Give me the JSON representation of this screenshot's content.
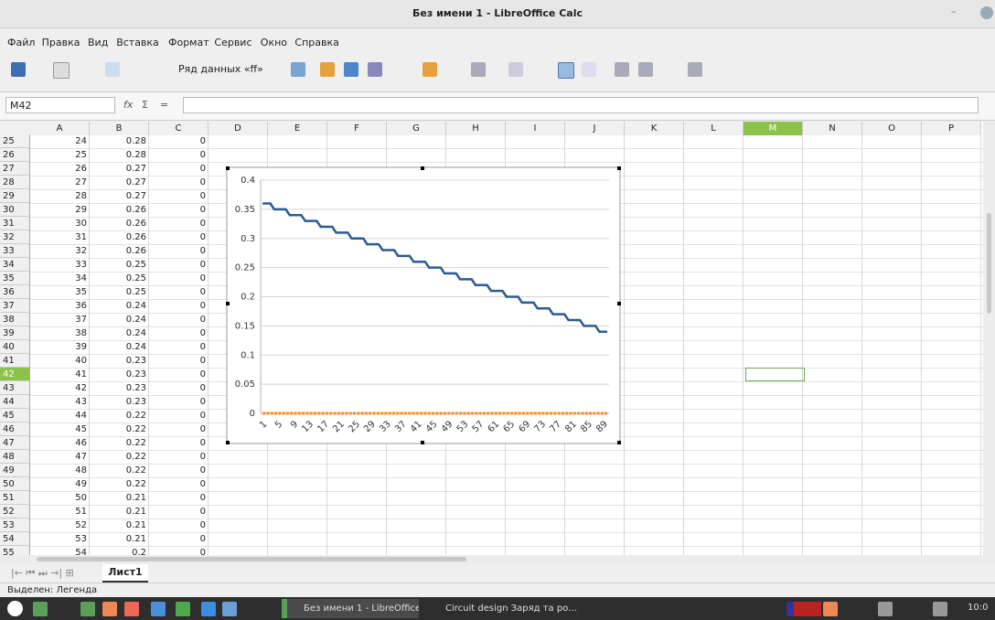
{
  "window_title": "Без имени 1 - LibreOffice Calc",
  "menu": [
    "Файл",
    "Правка",
    "Вид",
    "Вставка",
    "Формат",
    "Сервис",
    "Окно",
    "Справка"
  ],
  "toolbar": {
    "series_selector": "Ряд данных «ff»"
  },
  "name_box": "M42",
  "formula_symbols": [
    "fx",
    "Σ",
    "="
  ],
  "columns": [
    "A",
    "B",
    "C",
    "D",
    "E",
    "F",
    "G",
    "H",
    "I",
    "J",
    "K",
    "L",
    "M",
    "N",
    "O",
    "P"
  ],
  "rows": [
    [
      25,
      24,
      0.28,
      0
    ],
    [
      26,
      25,
      0.28,
      0
    ],
    [
      27,
      26,
      0.27,
      0
    ],
    [
      28,
      27,
      0.27,
      0
    ],
    [
      29,
      28,
      0.27,
      0
    ],
    [
      30,
      29,
      0.26,
      0
    ],
    [
      31,
      30,
      0.26,
      0
    ],
    [
      32,
      31,
      0.26,
      0
    ],
    [
      33,
      32,
      0.26,
      0
    ],
    [
      34,
      33,
      0.25,
      0
    ],
    [
      35,
      34,
      0.25,
      0
    ],
    [
      36,
      35,
      0.25,
      0
    ],
    [
      37,
      36,
      0.24,
      0
    ],
    [
      38,
      37,
      0.24,
      0
    ],
    [
      39,
      38,
      0.24,
      0
    ],
    [
      40,
      39,
      0.24,
      0
    ],
    [
      41,
      40,
      0.23,
      0
    ],
    [
      42,
      41,
      0.23,
      0
    ],
    [
      43,
      42,
      0.23,
      0
    ],
    [
      44,
      43,
      0.23,
      0
    ],
    [
      45,
      44,
      0.22,
      0
    ],
    [
      46,
      45,
      0.22,
      0
    ],
    [
      47,
      46,
      0.22,
      0
    ],
    [
      48,
      47,
      0.22,
      0
    ],
    [
      49,
      48,
      0.22,
      0
    ],
    [
      50,
      49,
      0.22,
      0
    ],
    [
      51,
      50,
      0.21,
      0
    ],
    [
      52,
      51,
      0.21,
      0
    ],
    [
      53,
      52,
      0.21,
      0
    ],
    [
      54,
      53,
      0.21,
      0
    ],
    [
      55,
      54,
      0.2,
      0
    ]
  ],
  "sheet_tab": "Лист1",
  "status": "Выделен: Легенда",
  "taskbar": {
    "items": [
      "Без имени 1 - LibreOffice ...",
      "Circuit design Заряд та ро..."
    ],
    "clock": "10:0"
  },
  "chart_data": {
    "type": "line",
    "categories": [
      1,
      null,
      null,
      null,
      5,
      null,
      null,
      null,
      9,
      null,
      null,
      null,
      13,
      null,
      null,
      null,
      17,
      null,
      null,
      null,
      21,
      null,
      null,
      null,
      25,
      null,
      null,
      null,
      29,
      null,
      null,
      null,
      33,
      null,
      null,
      null,
      37,
      null,
      null,
      null,
      41,
      null,
      null,
      null,
      45,
      null,
      null,
      null,
      49,
      null,
      null,
      null,
      53,
      null,
      null,
      null,
      57,
      null,
      null,
      null,
      61,
      null,
      null,
      null,
      65,
      null,
      null,
      null,
      69,
      null,
      null,
      null,
      73,
      null,
      null,
      null,
      77,
      null,
      null,
      null,
      81,
      null,
      null,
      null,
      85,
      null,
      null,
      null,
      89,
      null
    ],
    "series": [
      {
        "color": "#2b5b94",
        "values": [
          0.36,
          0.36,
          0.36,
          0.35,
          0.35,
          0.35,
          0.35,
          0.34,
          0.34,
          0.34,
          0.34,
          0.33,
          0.33,
          0.33,
          0.33,
          0.32,
          0.32,
          0.32,
          0.32,
          0.31,
          0.31,
          0.31,
          0.31,
          0.3,
          0.3,
          0.3,
          0.3,
          0.29,
          0.29,
          0.29,
          0.29,
          0.28,
          0.28,
          0.28,
          0.28,
          0.27,
          0.27,
          0.27,
          0.27,
          0.26,
          0.26,
          0.26,
          0.26,
          0.25,
          0.25,
          0.25,
          0.25,
          0.24,
          0.24,
          0.24,
          0.24,
          0.23,
          0.23,
          0.23,
          0.23,
          0.22,
          0.22,
          0.22,
          0.22,
          0.21,
          0.21,
          0.21,
          0.21,
          0.2,
          0.2,
          0.2,
          0.2,
          0.19,
          0.19,
          0.19,
          0.19,
          0.18,
          0.18,
          0.18,
          0.18,
          0.17,
          0.17,
          0.17,
          0.17,
          0.16,
          0.16,
          0.16,
          0.16,
          0.15,
          0.15,
          0.15,
          0.15,
          0.14,
          0.14,
          0.14
        ]
      },
      {
        "color": "#ff8a1e",
        "values": [
          0,
          0,
          0,
          0,
          0,
          0,
          0,
          0,
          0,
          0,
          0,
          0,
          0,
          0,
          0,
          0,
          0,
          0,
          0,
          0,
          0,
          0,
          0,
          0,
          0,
          0,
          0,
          0,
          0,
          0,
          0,
          0,
          0,
          0,
          0,
          0,
          0,
          0,
          0,
          0,
          0,
          0,
          0,
          0,
          0,
          0,
          0,
          0,
          0,
          0,
          0,
          0,
          0,
          0,
          0,
          0,
          0,
          0,
          0,
          0,
          0,
          0,
          0,
          0,
          0,
          0,
          0,
          0,
          0,
          0,
          0,
          0,
          0,
          0,
          0,
          0,
          0,
          0,
          0,
          0,
          0,
          0,
          0,
          0,
          0,
          0,
          0,
          0,
          0,
          0
        ]
      }
    ],
    "ylim": [
      0,
      0.4
    ],
    "yticks": [
      0,
      0.05,
      0.1,
      0.15,
      0.2,
      0.25,
      0.3,
      0.35,
      0.4
    ],
    "grid": true
  }
}
